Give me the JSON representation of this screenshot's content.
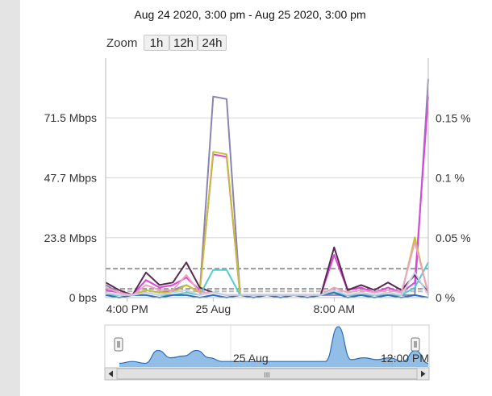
{
  "header": {
    "range_title": "Aug 24 2020, 3:00 pm - Aug 25 2020, 3:00 pm"
  },
  "zoom": {
    "label": "Zoom",
    "buttons": [
      "1h",
      "12h",
      "24h"
    ]
  },
  "navigator": {
    "labels": [
      "25 Aug",
      "12:00 PM"
    ],
    "scrollbar_grip": "III"
  },
  "chart_data": {
    "type": "line",
    "title": "Aug 24 2020, 3:00 pm - Aug 25 2020, 3:00 pm",
    "x_labels": [
      "4:00 PM",
      "25 Aug",
      "8:00 AM"
    ],
    "y_left": {
      "label": "",
      "ticks": [
        "0 bps",
        "23.8 Mbps",
        "47.7 Mbps",
        "71.5 Mbps"
      ],
      "tick_values": [
        0,
        23.8,
        47.7,
        71.5
      ],
      "range": [
        0,
        95.3
      ]
    },
    "y_right": {
      "label": "",
      "ticks": [
        "0 %",
        "0.05 %",
        "0.1 %",
        "0.15 %"
      ],
      "tick_values": [
        0,
        0.05,
        0.1,
        0.15
      ],
      "range": [
        0,
        0.2
      ]
    },
    "grid": true,
    "x": [
      0,
      1,
      2,
      3,
      4,
      5,
      6,
      7,
      8,
      9,
      10,
      11,
      12,
      13,
      14,
      15,
      16,
      17,
      18,
      19,
      20,
      21,
      22,
      23,
      24
    ],
    "series": [
      {
        "color": "#8a84b4",
        "values": [
          5,
          2,
          1,
          3,
          2,
          3,
          5,
          2,
          80,
          79,
          1,
          1,
          1,
          1,
          1,
          1,
          1,
          1,
          1,
          1,
          1,
          1,
          1,
          1,
          87
        ]
      },
      {
        "color": "#dd44dd",
        "values": [
          3,
          2,
          1,
          7,
          4,
          5,
          8,
          3,
          57,
          56,
          1,
          1,
          1,
          1,
          1,
          1,
          1,
          17,
          3,
          4,
          2,
          4,
          2,
          6,
          80
        ]
      },
      {
        "color": "#c8c030",
        "values": [
          2,
          1,
          1,
          3,
          2,
          2,
          5,
          2,
          58,
          57,
          1,
          1,
          1,
          1,
          1,
          1,
          1,
          2,
          1,
          2,
          1,
          2,
          1,
          24,
          1
        ]
      },
      {
        "color": "#5a2a50",
        "values": [
          6,
          3,
          1,
          10,
          5,
          6,
          14,
          4,
          2,
          1,
          1,
          1,
          1,
          1,
          1,
          1,
          1,
          20,
          3,
          5,
          3,
          6,
          3,
          9,
          2
        ]
      },
      {
        "color": "#55cccc",
        "values": [
          1,
          1,
          1,
          2,
          1,
          1,
          2,
          1,
          11,
          11,
          1,
          1,
          1,
          1,
          1,
          1,
          1,
          2,
          1,
          1,
          1,
          1,
          1,
          4,
          14
        ]
      },
      {
        "color": "#f0a0c0",
        "values": [
          4,
          2,
          1,
          5,
          3,
          3,
          9,
          2,
          2,
          1,
          1,
          1,
          1,
          1,
          1,
          1,
          1,
          4,
          2,
          3,
          2,
          3,
          2,
          22,
          2
        ]
      },
      {
        "color": "#2a6ebd",
        "values": [
          1,
          0,
          1,
          1,
          0,
          1,
          1,
          0,
          1,
          0,
          1,
          0,
          1,
          0,
          1,
          0,
          1,
          2,
          0,
          1,
          0,
          1,
          0,
          1,
          0
        ]
      },
      {
        "color": "#c8d0e8",
        "values": [
          2,
          1,
          1,
          2,
          1,
          2,
          3,
          1,
          2,
          1,
          1,
          1,
          1,
          1,
          1,
          1,
          1,
          3,
          1,
          2,
          1,
          2,
          1,
          10,
          1
        ]
      }
    ],
    "thresholds": [
      {
        "value": 11.5,
        "color": "#999999"
      },
      {
        "value": 3.5,
        "color": "#999999"
      },
      {
        "value": 2.5,
        "color": "#bbbbbb"
      }
    ],
    "navigator_values": [
      2,
      3,
      2,
      9,
      5,
      6,
      9,
      5,
      3,
      3,
      3,
      3,
      3,
      3,
      3,
      3,
      3,
      22,
      4,
      5,
      4,
      5,
      3,
      9,
      2
    ],
    "colors": {
      "navigator_fill": "#6ea8dc",
      "navigator_line": "#2a6ebd",
      "grid": "#d8d8d8",
      "axis": "#bbbbbb"
    }
  }
}
